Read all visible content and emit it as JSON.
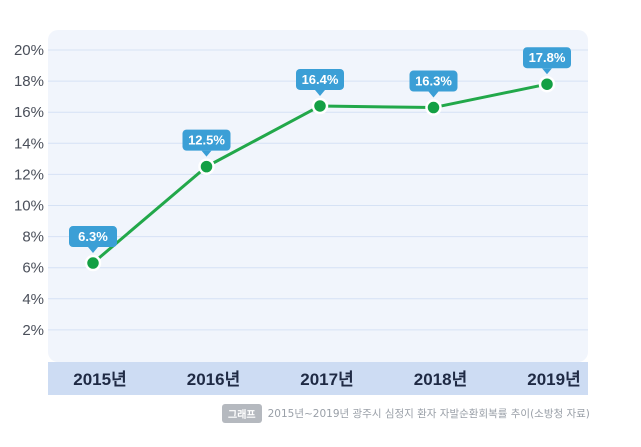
{
  "chart_data": {
    "type": "line",
    "categories": [
      "2015년",
      "2016년",
      "2017년",
      "2018년",
      "2019년"
    ],
    "series": [
      {
        "values": [
          6.3,
          12.5,
          16.4,
          16.3,
          17.8
        ]
      }
    ],
    "data_labels": [
      "6.3%",
      "12.5%",
      "16.4%",
      "16.3%",
      "17.8%"
    ],
    "y_ticks": [
      "2%",
      "4%",
      "6%",
      "8%",
      "10%",
      "12%",
      "14%",
      "16%",
      "18%",
      "20%"
    ],
    "y_tick_values": [
      2,
      4,
      6,
      8,
      10,
      12,
      14,
      16,
      18,
      20
    ],
    "ylim": [
      0,
      20
    ],
    "grid": true,
    "colors": {
      "line": "#22a84a",
      "marker_fill": "#14a044",
      "marker_stroke": "#ffffff",
      "label_bg": "#3b9fd6",
      "plot_bg": "#f1f5fc",
      "grid": "#d6e2f5",
      "axis_band": "#cddcf3"
    }
  },
  "caption": {
    "badge": "그래프",
    "text": "2015년~2019년 광주시 심정지 환자 자발순환회복률 추이(소방청 자료)"
  }
}
